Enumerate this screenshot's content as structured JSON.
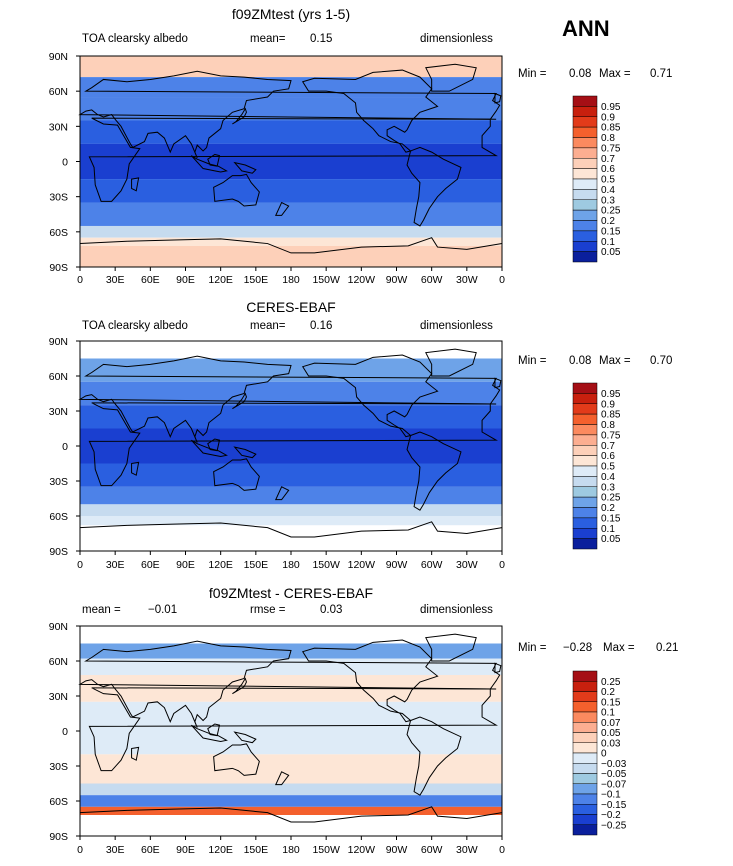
{
  "figure": {
    "season": "ANN"
  },
  "chart_data": [
    {
      "type": "heatmap",
      "title": "f09ZMtest (yrs 1-5)",
      "left_label": "TOA clearsky albedo",
      "mean_label": "mean=",
      "mean_value": "0.15",
      "units": "dimensionless",
      "min_label": "Min =",
      "min_value": "0.08",
      "max_label": "Max =",
      "max_value": "0.71",
      "x_ticks": [
        "0",
        "30E",
        "60E",
        "90E",
        "120E",
        "150E",
        "180",
        "150W",
        "120W",
        "90W",
        "60W",
        "30W",
        "0"
      ],
      "y_ticks": [
        "90N",
        "60N",
        "30N",
        "0",
        "30S",
        "60S",
        "90S"
      ],
      "colorbar": {
        "levels": [
          "0.95",
          "0.9",
          "0.85",
          "0.8",
          "0.75",
          "0.7",
          "0.6",
          "0.5",
          "0.4",
          "0.3",
          "0.25",
          "0.2",
          "0.15",
          "0.1",
          "0.05"
        ],
        "colors": [
          "#a50f15",
          "#c8200e",
          "#e23b1a",
          "#f4602d",
          "#fb8a5f",
          "#fcae91",
          "#fdd0b9",
          "#fde6d6",
          "#deebf7",
          "#c6dbef",
          "#9ecae1",
          "#6ea3e8",
          "#4d82e8",
          "#2a5fe0",
          "#1a3fd0",
          "#0a1f9c"
        ]
      },
      "zones": [
        {
          "from": 90,
          "to": 72,
          "value": 0.6
        },
        {
          "from": 72,
          "to": 55,
          "value": 0.17
        },
        {
          "from": 55,
          "to": 35,
          "value": 0.15
        },
        {
          "from": 35,
          "to": 15,
          "value": 0.12
        },
        {
          "from": 15,
          "to": -15,
          "value": 0.08
        },
        {
          "from": -15,
          "to": -35,
          "value": 0.12
        },
        {
          "from": -35,
          "to": -55,
          "value": 0.16
        },
        {
          "from": -55,
          "to": -65,
          "value": 0.3
        },
        {
          "from": -65,
          "to": -72,
          "value": 0.5
        },
        {
          "from": -72,
          "to": -90,
          "value": 0.65
        }
      ]
    },
    {
      "type": "heatmap",
      "title": "CERES-EBAF",
      "left_label": "TOA clearsky albedo",
      "mean_label": "mean=",
      "mean_value": "0.16",
      "units": "dimensionless",
      "min_label": "Min =",
      "min_value": "0.08",
      "max_label": "Max =",
      "max_value": "0.70",
      "x_ticks": [
        "0",
        "30E",
        "60E",
        "90E",
        "120E",
        "150E",
        "180",
        "150W",
        "120W",
        "90W",
        "60W",
        "30W",
        "0"
      ],
      "y_ticks": [
        "90N",
        "60N",
        "30N",
        "0",
        "30S",
        "60S",
        "90S"
      ],
      "colorbar": {
        "levels": [
          "0.95",
          "0.9",
          "0.85",
          "0.8",
          "0.75",
          "0.7",
          "0.6",
          "0.5",
          "0.4",
          "0.3",
          "0.25",
          "0.2",
          "0.15",
          "0.1",
          "0.05"
        ],
        "colors": [
          "#a50f15",
          "#c8200e",
          "#e23b1a",
          "#f4602d",
          "#fb8a5f",
          "#fcae91",
          "#fdd0b9",
          "#fde6d6",
          "#deebf7",
          "#c6dbef",
          "#9ecae1",
          "#6ea3e8",
          "#4d82e8",
          "#2a5fe0",
          "#1a3fd0",
          "#0a1f9c"
        ]
      },
      "zones": [
        {
          "from": 90,
          "to": 75,
          "value": null
        },
        {
          "from": 75,
          "to": 55,
          "value": 0.2
        },
        {
          "from": 55,
          "to": 35,
          "value": 0.15
        },
        {
          "from": 35,
          "to": 15,
          "value": 0.12
        },
        {
          "from": 15,
          "to": -15,
          "value": 0.08
        },
        {
          "from": -15,
          "to": -35,
          "value": 0.12
        },
        {
          "from": -35,
          "to": -50,
          "value": 0.16
        },
        {
          "from": -50,
          "to": -60,
          "value": 0.3
        },
        {
          "from": -60,
          "to": -68,
          "value": 0.45
        },
        {
          "from": -68,
          "to": -90,
          "value": null
        }
      ]
    },
    {
      "type": "heatmap",
      "title": "f09ZMtest - CERES-EBAF",
      "mean_label": "mean =",
      "mean_value": "−0.01",
      "rmse_label": "rmse =",
      "rmse_value": "0.03",
      "units": "dimensionless",
      "min_label": "Min =",
      "min_value": "−0.28",
      "max_label": "Max =",
      "max_value": "0.21",
      "x_ticks": [
        "0",
        "30E",
        "60E",
        "90E",
        "120E",
        "150E",
        "180",
        "150W",
        "120W",
        "90W",
        "60W",
        "30W",
        "0"
      ],
      "y_ticks": [
        "90N",
        "60N",
        "30N",
        "0",
        "30S",
        "60S",
        "90S"
      ],
      "colorbar": {
        "levels": [
          "0.25",
          "0.2",
          "0.15",
          "0.1",
          "0.07",
          "0.05",
          "0.03",
          "0",
          "−0.03",
          "−0.05",
          "−0.07",
          "−0.1",
          "−0.15",
          "−0.2",
          "−0.25"
        ],
        "colors": [
          "#a50f15",
          "#c8200e",
          "#e23b1a",
          "#f4602d",
          "#fb8a5f",
          "#fcae91",
          "#fdd0b9",
          "#fde6d6",
          "#deebf7",
          "#c6dbef",
          "#9ecae1",
          "#6ea3e8",
          "#4d82e8",
          "#2a5fe0",
          "#1a3fd0",
          "#0a1f9c"
        ]
      },
      "zones": [
        {
          "from": 90,
          "to": 75,
          "value": null
        },
        {
          "from": 75,
          "to": 62,
          "value": -0.1
        },
        {
          "from": 62,
          "to": 48,
          "value": -0.03
        },
        {
          "from": 48,
          "to": 25,
          "value": 0.01
        },
        {
          "from": 25,
          "to": -20,
          "value": -0.01
        },
        {
          "from": -20,
          "to": -45,
          "value": 0.01
        },
        {
          "from": -45,
          "to": -55,
          "value": -0.05
        },
        {
          "from": -55,
          "to": -65,
          "value": -0.15
        },
        {
          "from": -65,
          "to": -72,
          "value": 0.1
        },
        {
          "from": -72,
          "to": -90,
          "value": null
        }
      ]
    }
  ]
}
